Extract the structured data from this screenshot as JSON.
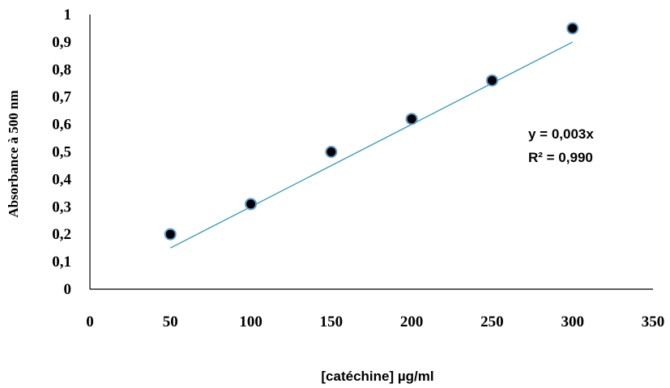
{
  "chart_data": {
    "type": "scatter",
    "title": "",
    "xlabel": "[catéchine] µg/ml",
    "ylabel": "Absorbance  à 500 nm",
    "xlim": [
      0,
      350
    ],
    "ylim": [
      0,
      1
    ],
    "x_ticks": [
      "0",
      "50",
      "100",
      "150",
      "200",
      "250",
      "300",
      "350"
    ],
    "y_ticks": [
      "0",
      "0,1",
      "0,2",
      "0,3",
      "0,4",
      "0,5",
      "0,6",
      "0,7",
      "0,8",
      "0,9",
      "1"
    ],
    "grid": false,
    "legend": "none",
    "series": [
      {
        "x": [
          50,
          100,
          150,
          200,
          250,
          300
        ],
        "y": [
          0.2,
          0.31,
          0.5,
          0.62,
          0.76,
          0.95
        ],
        "marker_color": "#000000",
        "marker_edge_color": "#5b9bd5"
      }
    ],
    "trendline": {
      "type": "linear",
      "slope": 0.003,
      "intercept": 0,
      "x_range": [
        50,
        300
      ],
      "color": "#2e9bbf",
      "equation_label": "y = 0,003x",
      "r2_label": "R² = 0,990"
    }
  }
}
